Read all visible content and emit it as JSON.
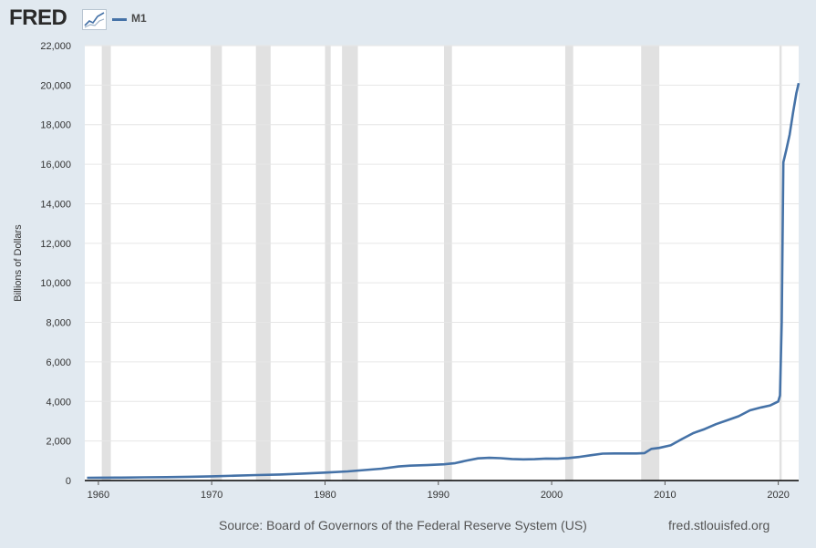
{
  "header": {
    "logo_text": "FRED",
    "logo_icon": "line-chart-icon",
    "legend_label": "M1",
    "legend_color": "#4572a7"
  },
  "footer": {
    "source": "Source: Board of Governors of the Federal Reserve System (US)",
    "url": "fred.stlouisfed.org"
  },
  "chart_data": {
    "type": "line",
    "title": "",
    "xlabel": "",
    "ylabel": "Billions of Dollars",
    "xlim": [
      1958.8,
      2021.8
    ],
    "ylim": [
      0,
      22000
    ],
    "xticks": [
      1960,
      1970,
      1980,
      1990,
      2000,
      2010,
      2020
    ],
    "yticks": [
      0,
      2000,
      4000,
      6000,
      8000,
      10000,
      12000,
      14000,
      16000,
      18000,
      20000,
      22000
    ],
    "ytick_labels": [
      "0",
      "2,000",
      "4,000",
      "6,000",
      "8,000",
      "10,000",
      "12,000",
      "14,000",
      "16,000",
      "18,000",
      "20,000",
      "22,000"
    ],
    "grid": true,
    "recession_color": "#e1e1e1",
    "recessions": [
      [
        1960.3,
        1961.1
      ],
      [
        1969.9,
        1970.9
      ],
      [
        1973.9,
        1975.2
      ],
      [
        1980.0,
        1980.5
      ],
      [
        1981.5,
        1982.9
      ],
      [
        1990.5,
        1991.2
      ],
      [
        2001.2,
        2001.9
      ],
      [
        2007.9,
        2009.5
      ],
      [
        2020.1,
        2020.3
      ]
    ],
    "series": [
      {
        "name": "M1",
        "color": "#4572a7",
        "points": [
          [
            1959.0,
            140
          ],
          [
            1960.0,
            141
          ],
          [
            1962.0,
            148
          ],
          [
            1964.0,
            160
          ],
          [
            1966.0,
            172
          ],
          [
            1968.0,
            190
          ],
          [
            1970.0,
            214
          ],
          [
            1972.0,
            245
          ],
          [
            1974.0,
            275
          ],
          [
            1976.0,
            305
          ],
          [
            1978.0,
            350
          ],
          [
            1980.0,
            400
          ],
          [
            1982.0,
            460
          ],
          [
            1983.5,
            530
          ],
          [
            1985.0,
            600
          ],
          [
            1986.5,
            710
          ],
          [
            1987.5,
            750
          ],
          [
            1989.0,
            780
          ],
          [
            1990.5,
            820
          ],
          [
            1991.5,
            880
          ],
          [
            1992.5,
            1010
          ],
          [
            1993.5,
            1120
          ],
          [
            1994.5,
            1150
          ],
          [
            1995.5,
            1130
          ],
          [
            1996.5,
            1090
          ],
          [
            1997.5,
            1070
          ],
          [
            1998.5,
            1080
          ],
          [
            1999.5,
            1110
          ],
          [
            2000.5,
            1100
          ],
          [
            2001.5,
            1140
          ],
          [
            2002.5,
            1200
          ],
          [
            2003.5,
            1280
          ],
          [
            2004.5,
            1360
          ],
          [
            2005.5,
            1370
          ],
          [
            2006.5,
            1370
          ],
          [
            2007.5,
            1370
          ],
          [
            2008.2,
            1390
          ],
          [
            2008.8,
            1600
          ],
          [
            2009.5,
            1650
          ],
          [
            2010.5,
            1780
          ],
          [
            2011.5,
            2100
          ],
          [
            2012.5,
            2400
          ],
          [
            2013.5,
            2600
          ],
          [
            2014.5,
            2850
          ],
          [
            2015.5,
            3050
          ],
          [
            2016.5,
            3250
          ],
          [
            2017.5,
            3550
          ],
          [
            2018.5,
            3700
          ],
          [
            2019.3,
            3800
          ],
          [
            2020.0,
            4000
          ],
          [
            2020.15,
            4300
          ],
          [
            2020.3,
            8000
          ],
          [
            2020.45,
            16100
          ],
          [
            2020.7,
            16700
          ],
          [
            2021.0,
            17500
          ],
          [
            2021.3,
            18600
          ],
          [
            2021.6,
            19600
          ],
          [
            2021.8,
            20100
          ]
        ]
      }
    ]
  }
}
